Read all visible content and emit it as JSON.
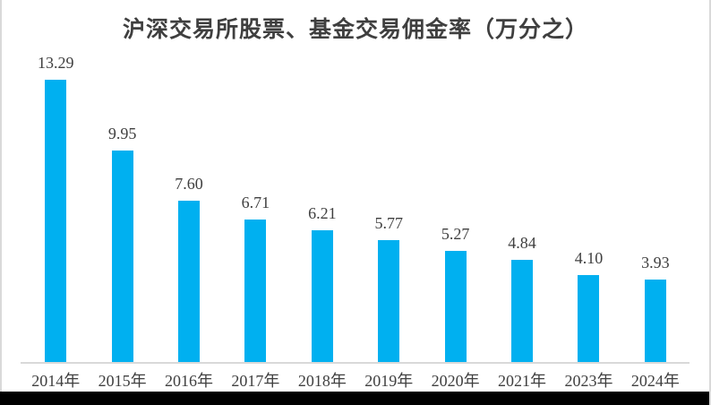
{
  "title": "沪深交易所股票、基金交易佣金率（万分之）",
  "chart_data": {
    "type": "bar",
    "title": "沪深交易所股票、基金交易佣金率（万分之）",
    "categories": [
      "2014年",
      "2015年",
      "2016年",
      "2017年",
      "2018年",
      "2019年",
      "2020年",
      "2021年",
      "2023年",
      "2024年"
    ],
    "values": [
      13.29,
      9.95,
      7.6,
      6.71,
      6.21,
      5.77,
      5.27,
      4.84,
      4.1,
      3.93
    ],
    "value_labels": [
      "13.29",
      "9.95",
      "7.60",
      "6.71",
      "6.21",
      "5.77",
      "5.27",
      "4.84",
      "4.10",
      "3.93"
    ],
    "xlabel": "",
    "ylabel": "",
    "ylim": [
      0,
      14.6
    ],
    "grid": false,
    "legend": false,
    "y_axis_visible": false,
    "data_labels_position": "above-bars",
    "bar_color": "#00b0f0",
    "text_color": "#3f3f3f",
    "axis_line_color": "#d9d9d9",
    "background_color": "#ffffff",
    "bottom_strip_color": "#000000"
  }
}
